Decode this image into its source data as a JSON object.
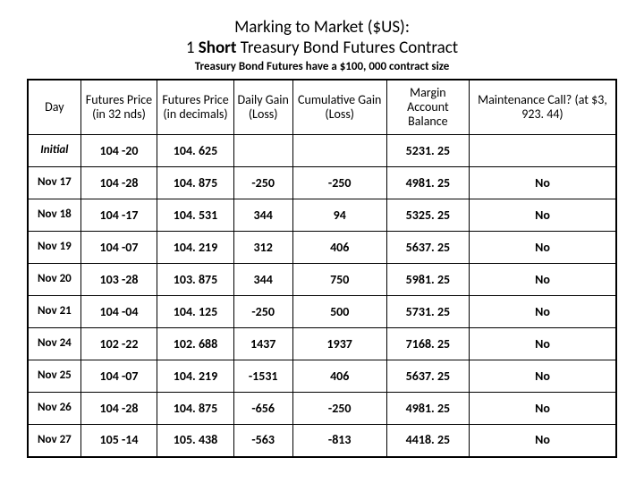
{
  "title": {
    "line1": "Marking to Market ($US):",
    "line2_pre": "1 ",
    "line2_bold": "Short",
    "line2_post": " Treasury Bond Futures Contract",
    "subtitle": "Treasury Bond Futures have a $100, 000 contract size"
  },
  "table": {
    "columns": [
      "Day",
      "Futures Price (in 32 nds)",
      "Futures Price (in decimals)",
      "Daily Gain (Loss)",
      "Cumulative Gain (Loss)",
      "Margin Account Balance",
      "Maintenance Call? (at $3, 923. 44)"
    ],
    "col_classes": [
      "col-day",
      "col-p32",
      "col-pdec",
      "col-daily",
      "col-cum",
      "col-marg",
      "col-maint"
    ],
    "rows": [
      {
        "day": "Initial",
        "italic": true,
        "cells": [
          "104 -20",
          "104. 625",
          "",
          "",
          "5231. 25",
          ""
        ]
      },
      {
        "day": "Nov 17",
        "italic": false,
        "cells": [
          "104 -28",
          "104. 875",
          "-250",
          "-250",
          "4981. 25",
          "No"
        ]
      },
      {
        "day": "Nov 18",
        "italic": false,
        "cells": [
          "104 -17",
          "104. 531",
          "344",
          "94",
          "5325. 25",
          "No"
        ]
      },
      {
        "day": "Nov 19",
        "italic": false,
        "cells": [
          "104 -07",
          "104. 219",
          "312",
          "406",
          "5637. 25",
          "No"
        ]
      },
      {
        "day": "Nov 20",
        "italic": false,
        "cells": [
          "103 -28",
          "103. 875",
          "344",
          "750",
          "5981. 25",
          "No"
        ]
      },
      {
        "day": "Nov 21",
        "italic": false,
        "cells": [
          "104 -04",
          "104. 125",
          "-250",
          "500",
          "5731. 25",
          "No"
        ]
      },
      {
        "day": "Nov 24",
        "italic": false,
        "cells": [
          "102 -22",
          "102. 688",
          "1437",
          "1937",
          "7168. 25",
          "No"
        ]
      },
      {
        "day": "Nov 25",
        "italic": false,
        "cells": [
          "104 -07",
          "104. 219",
          "-1531",
          "406",
          "5637. 25",
          "No"
        ]
      },
      {
        "day": "Nov 26",
        "italic": false,
        "cells": [
          "104 -28",
          "104. 875",
          "-656",
          "-250",
          "4981. 25",
          "No"
        ]
      },
      {
        "day": "Nov 27",
        "italic": false,
        "cells": [
          "105 -14",
          "105. 438",
          "-563",
          "-813",
          "4418. 25",
          "No"
        ]
      }
    ]
  },
  "styling": {
    "background_color": "#ffffff",
    "text_color": "#000000",
    "border_color": "#000000",
    "title_fontsize": 19,
    "subtitle_fontsize": 13,
    "header_fontsize": 14,
    "cell_fontsize": 14,
    "day_cell_fontsize": 13,
    "outer_border_width": 2,
    "inner_border_width": 1,
    "header_weight": "normal",
    "body_weight": "bold"
  }
}
